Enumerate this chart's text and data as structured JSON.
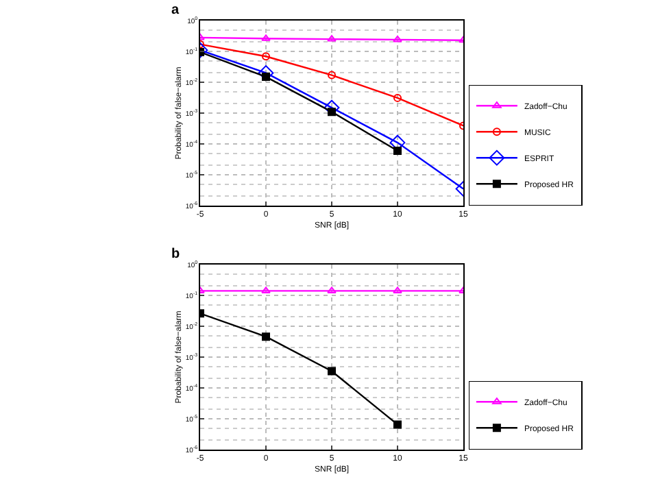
{
  "chart_data": [
    {
      "type": "line",
      "title": "a",
      "xlabel": "SNR [dB]",
      "ylabel": "Probability of false−alarm",
      "log": "y",
      "grid": true,
      "legend": "right",
      "line_style": "solid",
      "x": [
        -5,
        0,
        5,
        10,
        15
      ],
      "xlim": [
        -5,
        15
      ],
      "xticks": [
        -5,
        0,
        5,
        10,
        15
      ],
      "ylim": [
        1e-06,
        1
      ],
      "yticks": [
        {
          "value": 1e-06,
          "label": "10$^{-6}$"
        },
        {
          "value": 1e-05,
          "label": "10$^{-5}$"
        },
        {
          "value": 0.0001,
          "label": "10$^{-4}$"
        },
        {
          "value": 0.001,
          "label": "10$^{-3}$"
        },
        {
          "value": 0.01,
          "label": "10$^{-2}$"
        },
        {
          "value": 0.1,
          "label": "10$^{-1}$"
        },
        {
          "value": 1,
          "label": "10$^{0}$"
        }
      ],
      "series": [
        {
          "name": "Zadoff−Chu",
          "color": "#ff00ff",
          "marker": "triangle",
          "values": [
            0.28,
            0.26,
            0.25,
            0.24,
            0.23
          ]
        },
        {
          "name": "MUSIC",
          "color": "#ff0000",
          "marker": "circle",
          "values": [
            0.17,
            0.069,
            0.017,
            0.0031,
            0.00039
          ]
        },
        {
          "name": "ESPRIT",
          "color": "#0000ff",
          "marker": "diamond",
          "values": [
            0.11,
            0.02,
            0.0015,
            0.00011,
            3.5e-06
          ]
        },
        {
          "name": "Proposed HR",
          "color": "#000000",
          "marker": "square",
          "values": [
            0.095,
            0.015,
            0.0011,
            6e-05,
            null
          ]
        }
      ]
    },
    {
      "type": "line",
      "title": "b",
      "xlabel": "SNR [dB]",
      "ylabel": "Probability of false−alarm",
      "log": "y",
      "grid": true,
      "legend": "right",
      "line_style": "solid",
      "x": [
        -5,
        0,
        5,
        10,
        15
      ],
      "xlim": [
        -5,
        15
      ],
      "xticks": [
        -5,
        0,
        5,
        10,
        15
      ],
      "ylim": [
        1e-06,
        1
      ],
      "yticks": [
        {
          "value": 1e-06,
          "label": "10$^{-6}$"
        },
        {
          "value": 1e-05,
          "label": "10$^{-5}$"
        },
        {
          "value": 0.0001,
          "label": "10$^{-4}$"
        },
        {
          "value": 0.001,
          "label": "10$^{-3}$"
        },
        {
          "value": 0.01,
          "label": "10$^{-2}$"
        },
        {
          "value": 0.1,
          "label": "10$^{-1}$"
        },
        {
          "value": 1,
          "label": "10$^{0}$"
        }
      ],
      "series": [
        {
          "name": "Zadoff−Chu",
          "color": "#ff00ff",
          "marker": "triangle",
          "values": [
            0.14,
            0.14,
            0.14,
            0.14,
            0.14
          ]
        },
        {
          "name": "Proposed HR",
          "color": "#000000",
          "marker": "square",
          "values": [
            0.026,
            0.0046,
            0.00035,
            6.5e-06,
            null
          ]
        }
      ]
    }
  ]
}
